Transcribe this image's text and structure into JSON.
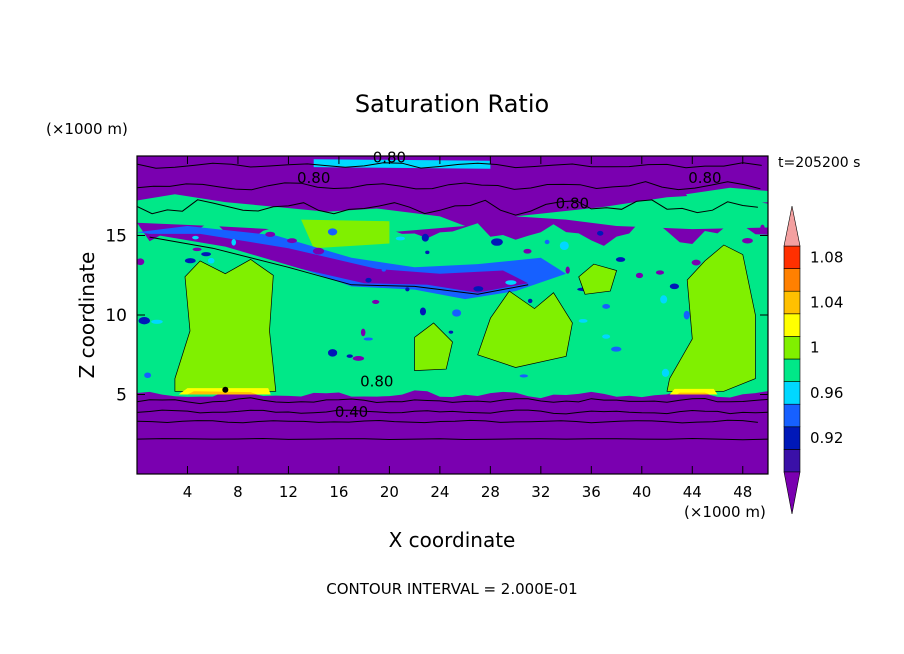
{
  "chart_data": {
    "type": "heatmap",
    "title": "Saturation Ratio",
    "xlabel": "X coordinate",
    "ylabel": "Z coordinate",
    "x_unit": "(×1000 m)",
    "y_unit": "(×1000 m)",
    "time_label": "t=205200 s",
    "footer": "CONTOUR INTERVAL = 2.000E-01",
    "xlim": [
      0,
      50
    ],
    "ylim": [
      0,
      20
    ],
    "x_ticks": [
      4,
      8,
      12,
      16,
      20,
      24,
      28,
      32,
      36,
      40,
      44,
      48
    ],
    "y_ticks": [
      5,
      10,
      15
    ],
    "colorbar": {
      "levels": [
        0.92,
        0.96,
        1,
        1.04,
        1.08
      ],
      "colors": [
        "#7a00b0",
        "#3a10a8",
        "#0018b8",
        "#1660ff",
        "#00d8ff",
        "#00e888",
        "#80f000",
        "#ffff00",
        "#ffc000",
        "#ff8000",
        "#ff3000",
        "#f3a0a0"
      ]
    },
    "contour_labels": [
      "0.80",
      "0.80",
      "0.80",
      "0.80",
      "0.80",
      "0.40"
    ],
    "regions": [
      {
        "level": "0.98-1",
        "x": [
          2,
          50
        ],
        "y": [
          5,
          15
        ]
      },
      {
        "level": "1-1.02",
        "x": [
          3,
          10.5
        ],
        "y": [
          5,
          14
        ]
      },
      {
        "level": "1-1.02",
        "x": [
          42,
          49
        ],
        "y": [
          5,
          14
        ]
      },
      {
        "level": "1-1.02",
        "x": [
          13,
          20
        ],
        "y": [
          14,
          16
        ]
      },
      {
        "level": "1-1.02",
        "x": [
          26,
          34
        ],
        "y": [
          6,
          11
        ]
      },
      {
        "level": "<0.92",
        "x": [
          0,
          50
        ],
        "y": [
          0,
          5
        ]
      },
      {
        "level": "<0.92",
        "x": [
          0,
          50
        ],
        "y": [
          17.5,
          20
        ]
      }
    ]
  }
}
